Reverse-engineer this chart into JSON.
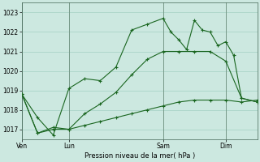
{
  "title": "Pression niveau de la mer( hPa )",
  "bg_color": "#cce8e0",
  "grid_color": "#aad4c8",
  "line_color": "#1a6620",
  "ylim": [
    1016.5,
    1023.5
  ],
  "yticks": [
    1017,
    1018,
    1019,
    1020,
    1021,
    1022,
    1023
  ],
  "xtick_labels": [
    "Ven",
    "Lun",
    "Sam",
    "Dim"
  ],
  "xtick_positions": [
    0,
    3,
    9,
    13
  ],
  "xlim": [
    0,
    15
  ],
  "series": [
    {
      "x": [
        0,
        1,
        2,
        3,
        4,
        5,
        6,
        7,
        8,
        9,
        9.5,
        10,
        10.5,
        11,
        11.5,
        12,
        12.5,
        13,
        13.5,
        14,
        15
      ],
      "y": [
        1018.8,
        1017.6,
        1016.7,
        1019.1,
        1019.6,
        1019.5,
        1020.2,
        1022.1,
        1022.4,
        1022.7,
        1022.0,
        1021.6,
        1021.1,
        1022.6,
        1022.1,
        1022.0,
        1021.3,
        1021.5,
        1020.8,
        1018.6,
        1018.4
      ]
    },
    {
      "x": [
        0,
        1,
        2,
        3,
        4,
        5,
        6,
        7,
        8,
        9,
        10,
        11,
        12,
        13,
        14,
        15
      ],
      "y": [
        1018.8,
        1016.8,
        1017.1,
        1017.0,
        1017.8,
        1018.3,
        1018.9,
        1019.8,
        1020.6,
        1021.0,
        1021.0,
        1021.0,
        1021.0,
        1020.5,
        1018.6,
        1018.4
      ]
    },
    {
      "x": [
        0,
        1,
        2,
        3,
        4,
        5,
        6,
        7,
        8,
        9,
        10,
        11,
        12,
        13,
        14,
        15
      ],
      "y": [
        1018.8,
        1016.8,
        1017.0,
        1017.0,
        1017.2,
        1017.4,
        1017.6,
        1017.8,
        1018.0,
        1018.2,
        1018.4,
        1018.5,
        1018.5,
        1018.5,
        1018.4,
        1018.5
      ]
    }
  ]
}
